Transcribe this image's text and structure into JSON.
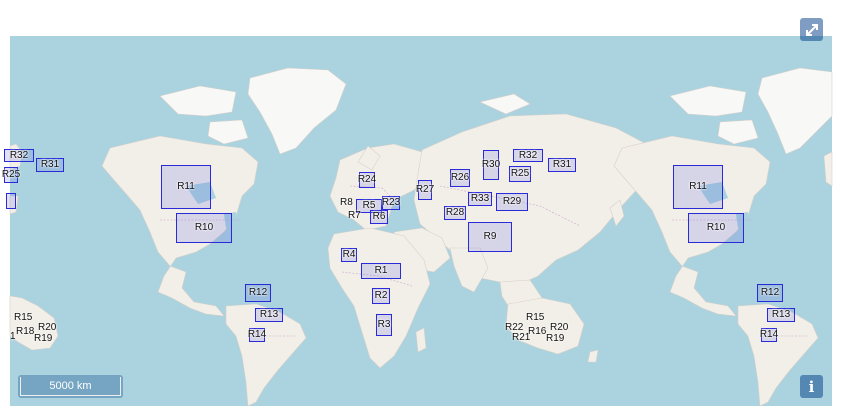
{
  "map": {
    "scale_label": "5000 km",
    "controls": {
      "fullscreen_icon": "expand-arrows-icon",
      "info_icon": "info-icon",
      "info_label": "i"
    },
    "colors": {
      "water": "#aad3df",
      "land": "#f2efe9",
      "region_border": "#2a2ad8",
      "region_fill": "rgba(90,90,220,0.18)"
    }
  },
  "regions": [
    {
      "label": "R32"
    },
    {
      "label": "R31"
    },
    {
      "label": "R25"
    },
    {
      "label": "R11"
    },
    {
      "label": "R10"
    },
    {
      "label": "R24"
    },
    {
      "label": "R8"
    },
    {
      "label": "R5"
    },
    {
      "label": "R23"
    },
    {
      "label": "R7"
    },
    {
      "label": "R6"
    },
    {
      "label": "R27"
    },
    {
      "label": "R26"
    },
    {
      "label": "R30"
    },
    {
      "label": "R32"
    },
    {
      "label": "R25"
    },
    {
      "label": "R31"
    },
    {
      "label": "R33"
    },
    {
      "label": "R29"
    },
    {
      "label": "R28"
    },
    {
      "label": "R9"
    },
    {
      "label": "R4"
    },
    {
      "label": "R1"
    },
    {
      "label": "R2"
    },
    {
      "label": "R3"
    },
    {
      "label": "R12"
    },
    {
      "label": "R13"
    },
    {
      "label": "R14"
    },
    {
      "label": "R11"
    },
    {
      "label": "R10"
    },
    {
      "label": "R12"
    },
    {
      "label": "R13"
    },
    {
      "label": "R14"
    }
  ],
  "labels": [
    {
      "label": "R15"
    },
    {
      "label": "R18"
    },
    {
      "label": "R20"
    },
    {
      "label": "R19"
    },
    {
      "label": "1"
    },
    {
      "label": "R15"
    },
    {
      "label": "R22"
    },
    {
      "label": "R16"
    },
    {
      "label": "R20"
    },
    {
      "label": "R21"
    },
    {
      "label": "R19"
    }
  ]
}
